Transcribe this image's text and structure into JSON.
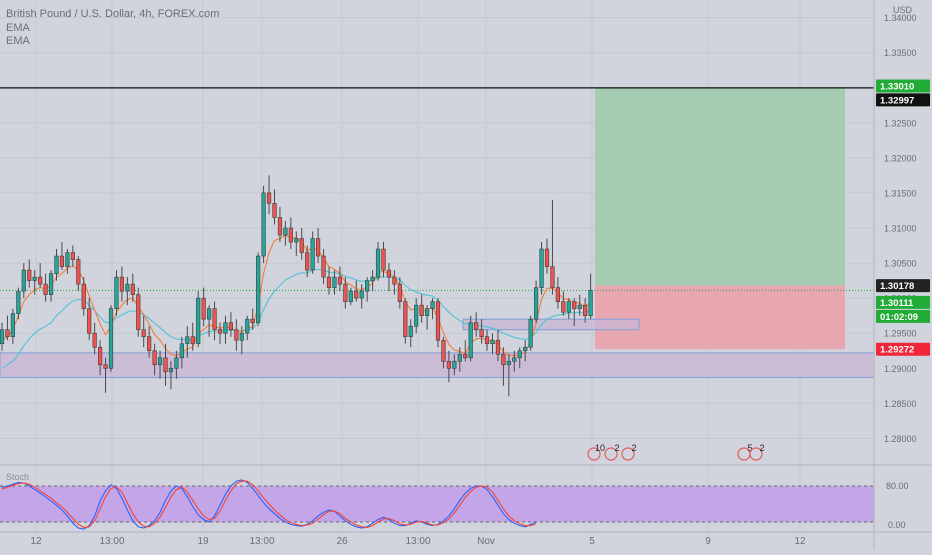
{
  "header": {
    "title": "British Pound / U.S. Dollar, 4h, FOREX.com",
    "indicators": [
      "EMA",
      "EMA"
    ]
  },
  "price_axis": {
    "currency": "USD",
    "ticks": [
      "1.34000",
      "1.33500",
      "1.33000",
      "1.32500",
      "1.32000",
      "1.31500",
      "1.31000",
      "1.30500",
      "1.30000",
      "1.29500",
      "1.29000",
      "1.28500",
      "1.28000"
    ]
  },
  "price_labels": {
    "target": "1.33010",
    "horizontal_line": "1.32997",
    "entry": "1.30178",
    "last_price": "1.30111",
    "countdown": "01:02:09",
    "stop": "1.29272"
  },
  "time_axis": {
    "labels": [
      "12",
      "13:00",
      "19",
      "13:00",
      "26",
      "13:00",
      "Nov",
      "5",
      "9",
      "12"
    ]
  },
  "stoch_panel": {
    "label": "Stoch",
    "levels": [
      "80.00",
      "0.00"
    ]
  },
  "event_markers": [
    {
      "text": "10",
      "color": "#e05a5a"
    },
    {
      "text": "2",
      "color": "#e05a5a"
    },
    {
      "text": "2",
      "color": "#e05a5a"
    },
    {
      "text": "5",
      "color": "#e05a5a"
    },
    {
      "text": "2",
      "color": "#e05a5a"
    }
  ],
  "colors": {
    "background": "#d1d4dc",
    "bull_candle": "#26a69a",
    "bear_candle": "#ef5350",
    "ema_fast": "#f57c3c",
    "ema_slow": "#4fc3d7",
    "target_zone": "#a5ccb3",
    "stop_zone": "#e8a7b0",
    "demand_zone": "#c9b6d6",
    "stoch_band": "#c3a5e8",
    "stoch_k": "#2962ff",
    "stoch_d": "#f44336",
    "entry_label": "#222222",
    "green_label": "#22ab36",
    "red_label": "#f0273a"
  },
  "chart_data": {
    "type": "candlestick",
    "symbol": "GBPUSD",
    "timeframe": "4h",
    "ylim": [
      1.2765,
      1.342
    ],
    "grid": true,
    "candles": [
      [
        1.2935,
        1.2965,
        1.2925,
        1.2955
      ],
      [
        1.2955,
        1.2975,
        1.294,
        1.2945
      ],
      [
        1.2945,
        1.2985,
        1.2935,
        1.2978
      ],
      [
        1.2978,
        1.3015,
        1.297,
        1.301
      ],
      [
        1.301,
        1.305,
        1.3,
        1.304
      ],
      [
        1.304,
        1.3055,
        1.3015,
        1.3025
      ],
      [
        1.3025,
        1.304,
        1.3005,
        1.303
      ],
      [
        1.303,
        1.305,
        1.3015,
        1.302
      ],
      [
        1.302,
        1.3035,
        1.2995,
        1.3005
      ],
      [
        1.3005,
        1.304,
        1.2995,
        1.3035
      ],
      [
        1.3035,
        1.307,
        1.3025,
        1.306
      ],
      [
        1.306,
        1.308,
        1.304,
        1.3045
      ],
      [
        1.3045,
        1.307,
        1.3035,
        1.3065
      ],
      [
        1.3065,
        1.3075,
        1.3045,
        1.3055
      ],
      [
        1.3055,
        1.306,
        1.301,
        1.302
      ],
      [
        1.302,
        1.303,
        1.2975,
        1.2985
      ],
      [
        1.2985,
        1.3,
        1.294,
        1.295
      ],
      [
        1.295,
        1.2965,
        1.292,
        1.293
      ],
      [
        1.293,
        1.294,
        1.289,
        1.2905
      ],
      [
        1.2905,
        1.2915,
        1.2865,
        1.29
      ],
      [
        1.29,
        1.299,
        1.2895,
        1.2985
      ],
      [
        1.2985,
        1.304,
        1.2975,
        1.303
      ],
      [
        1.303,
        1.3045,
        1.2995,
        1.301
      ],
      [
        1.301,
        1.303,
        1.299,
        1.302
      ],
      [
        1.302,
        1.3035,
        1.2995,
        1.3005
      ],
      [
        1.3005,
        1.3015,
        1.2945,
        1.2955
      ],
      [
        1.2955,
        1.2975,
        1.293,
        1.2945
      ],
      [
        1.2945,
        1.296,
        1.2915,
        1.2925
      ],
      [
        1.2925,
        1.2935,
        1.289,
        1.2905
      ],
      [
        1.2905,
        1.2925,
        1.2885,
        1.2915
      ],
      [
        1.2915,
        1.2935,
        1.2875,
        1.2895
      ],
      [
        1.2895,
        1.291,
        1.287,
        1.29
      ],
      [
        1.29,
        1.2925,
        1.2885,
        1.2915
      ],
      [
        1.2915,
        1.2945,
        1.29,
        1.2935
      ],
      [
        1.2935,
        1.296,
        1.2915,
        1.2945
      ],
      [
        1.2945,
        1.2965,
        1.2925,
        1.2935
      ],
      [
        1.2935,
        1.301,
        1.293,
        1.3
      ],
      [
        1.3,
        1.3015,
        1.296,
        1.297
      ],
      [
        1.297,
        1.299,
        1.2945,
        1.2985
      ],
      [
        1.2985,
        1.2995,
        1.294,
        1.2955
      ],
      [
        1.2955,
        1.2965,
        1.2935,
        1.295
      ],
      [
        1.295,
        1.2975,
        1.2935,
        1.2965
      ],
      [
        1.2965,
        1.298,
        1.2945,
        1.2955
      ],
      [
        1.2955,
        1.297,
        1.2925,
        1.294
      ],
      [
        1.294,
        1.296,
        1.292,
        1.295
      ],
      [
        1.295,
        1.2975,
        1.294,
        1.297
      ],
      [
        1.297,
        1.2985,
        1.2955,
        1.2965
      ],
      [
        1.2965,
        1.3065,
        1.296,
        1.306
      ],
      [
        1.306,
        1.316,
        1.305,
        1.315
      ],
      [
        1.315,
        1.3175,
        1.312,
        1.3135
      ],
      [
        1.3135,
        1.3155,
        1.3105,
        1.3115
      ],
      [
        1.3115,
        1.313,
        1.308,
        1.309
      ],
      [
        1.309,
        1.311,
        1.3075,
        1.31
      ],
      [
        1.31,
        1.3115,
        1.307,
        1.308
      ],
      [
        1.308,
        1.3095,
        1.306,
        1.3085
      ],
      [
        1.3085,
        1.31,
        1.3055,
        1.3065
      ],
      [
        1.3065,
        1.3075,
        1.303,
        1.304
      ],
      [
        1.304,
        1.3095,
        1.3035,
        1.3085
      ],
      [
        1.3085,
        1.31,
        1.305,
        1.306
      ],
      [
        1.306,
        1.307,
        1.302,
        1.303
      ],
      [
        1.303,
        1.3045,
        1.3005,
        1.3015
      ],
      [
        1.3015,
        1.304,
        1.3005,
        1.303
      ],
      [
        1.303,
        1.3045,
        1.301,
        1.302
      ],
      [
        1.302,
        1.303,
        1.2985,
        1.2995
      ],
      [
        1.2995,
        1.3015,
        1.299,
        1.301
      ],
      [
        1.301,
        1.3025,
        1.2995,
        1.3
      ],
      [
        1.3,
        1.302,
        1.2985,
        1.301
      ],
      [
        1.301,
        1.303,
        1.2995,
        1.3025
      ],
      [
        1.3025,
        1.304,
        1.301,
        1.303
      ],
      [
        1.303,
        1.308,
        1.3025,
        1.307
      ],
      [
        1.307,
        1.308,
        1.303,
        1.304
      ],
      [
        1.304,
        1.305,
        1.301,
        1.303
      ],
      [
        1.303,
        1.304,
        1.3005,
        1.302
      ],
      [
        1.302,
        1.303,
        1.2985,
        1.2995
      ],
      [
        1.2995,
        1.3,
        1.2935,
        1.2945
      ],
      [
        1.2945,
        1.297,
        1.293,
        1.296
      ],
      [
        1.296,
        1.3,
        1.295,
        1.299
      ],
      [
        1.299,
        1.3005,
        1.2965,
        1.2975
      ],
      [
        1.2975,
        1.299,
        1.2955,
        1.2985
      ],
      [
        1.2985,
        1.3,
        1.297,
        1.2995
      ],
      [
        1.2995,
        1.3,
        1.293,
        1.294
      ],
      [
        1.294,
        1.2945,
        1.29,
        1.291
      ],
      [
        1.291,
        1.2925,
        1.288,
        1.29
      ],
      [
        1.29,
        1.292,
        1.289,
        1.291
      ],
      [
        1.291,
        1.293,
        1.2895,
        1.292
      ],
      [
        1.292,
        1.294,
        1.291,
        1.2915
      ],
      [
        1.2915,
        1.2975,
        1.291,
        1.2965
      ],
      [
        1.2965,
        1.298,
        1.2945,
        1.2955
      ],
      [
        1.2955,
        1.297,
        1.2935,
        1.2945
      ],
      [
        1.2945,
        1.2955,
        1.2925,
        1.2935
      ],
      [
        1.2935,
        1.295,
        1.292,
        1.294
      ],
      [
        1.294,
        1.2955,
        1.291,
        1.292
      ],
      [
        1.292,
        1.293,
        1.2875,
        1.2905
      ],
      [
        1.2905,
        1.292,
        1.286,
        1.291
      ],
      [
        1.291,
        1.2925,
        1.2895,
        1.2915
      ],
      [
        1.2915,
        1.293,
        1.29,
        1.2925
      ],
      [
        1.2925,
        1.294,
        1.291,
        1.293
      ],
      [
        1.293,
        1.2975,
        1.2925,
        1.297
      ],
      [
        1.297,
        1.3025,
        1.2965,
        1.3015
      ],
      [
        1.3015,
        1.308,
        1.3005,
        1.307
      ],
      [
        1.307,
        1.3085,
        1.3035,
        1.3045
      ],
      [
        1.3045,
        1.314,
        1.3005,
        1.3015
      ],
      [
        1.3015,
        1.303,
        1.2985,
        1.2995
      ],
      [
        1.2995,
        1.301,
        1.2975,
        1.298
      ],
      [
        1.298,
        1.3,
        1.297,
        1.2995
      ],
      [
        1.2995,
        1.3,
        1.296,
        1.2985
      ],
      [
        1.2985,
        1.3005,
        1.2975,
        1.299
      ],
      [
        1.299,
        1.3,
        1.2965,
        1.2975
      ],
      [
        1.2975,
        1.3035,
        1.297,
        1.3011
      ]
    ],
    "ema_fast": [
      1.294,
      1.2945,
      1.2955,
      1.2975,
      1.2995,
      1.3005,
      1.3012,
      1.3015,
      1.3013,
      1.3018,
      1.303,
      1.3035,
      1.3043,
      1.3046,
      1.304,
      1.3025,
      1.3003,
      1.2983,
      1.2963,
      1.2948,
      1.296,
      1.298,
      1.299,
      1.2998,
      1.3,
      1.2988,
      1.2977,
      1.2963,
      1.2948,
      1.294,
      1.2928,
      1.292,
      1.2918,
      1.2922,
      1.2928,
      1.293,
      1.295,
      1.2955,
      1.2962,
      1.296,
      1.2957,
      1.2959,
      1.2958,
      1.2953,
      1.2952,
      1.2957,
      1.2959,
      1.299,
      1.3035,
      1.3065,
      1.3082,
      1.3085,
      1.309,
      1.3086,
      1.3086,
      1.308,
      1.3067,
      1.3072,
      1.3068,
      1.3057,
      1.3045,
      1.3041,
      1.3035,
      1.3023,
      1.3019,
      1.3013,
      1.3012,
      1.3016,
      1.3021,
      1.3037,
      1.3038,
      1.3035,
      1.303,
      1.3018,
      1.2995,
      1.2983,
      1.2985,
      1.2982,
      1.2983,
      1.2987,
      1.2971,
      1.2951,
      1.2934,
      1.2926,
      1.2924,
      1.2921,
      1.2936,
      1.2942,
      1.2943,
      1.294,
      1.294,
      1.2933,
      1.2924,
      1.2919,
      1.2918,
      1.292,
      1.2923,
      1.2938,
      1.2964,
      1.2999,
      1.3014,
      1.3014,
      1.3008,
      1.2999,
      1.2998,
      1.2994,
      1.2993,
      1.2987,
      1.2995
    ],
    "ema_slow": [
      1.29,
      1.2905,
      1.291,
      1.292,
      1.2932,
      1.2942,
      1.295,
      1.2956,
      1.296,
      1.2965,
      1.2975,
      1.2982,
      1.299,
      1.2996,
      1.2998,
      1.2997,
      1.299,
      1.2982,
      1.2973,
      1.2965,
      1.2966,
      1.2972,
      1.2976,
      1.298,
      1.2982,
      1.298,
      1.2976,
      1.2971,
      1.2964,
      1.2958,
      1.2951,
      1.2945,
      1.2942,
      1.2941,
      1.2941,
      1.2941,
      1.2947,
      1.2949,
      1.2953,
      1.2953,
      1.2953,
      1.2954,
      1.2954,
      1.2953,
      1.2953,
      1.2955,
      1.2956,
      1.2966,
      1.2984,
      1.2999,
      1.301,
      1.3018,
      1.3026,
      1.303,
      1.3034,
      1.3036,
      1.3036,
      1.304,
      1.3041,
      1.304,
      1.3037,
      1.3036,
      1.3035,
      1.3031,
      1.3029,
      1.3026,
      1.3024,
      1.3024,
      1.3025,
      1.3029,
      1.303,
      1.303,
      1.3029,
      1.3026,
      1.3018,
      1.3012,
      1.3009,
      1.3006,
      1.3004,
      1.3003,
      1.2997,
      1.2988,
      1.298,
      1.2973,
      1.2968,
      1.2963,
      1.2963,
      1.2962,
      1.2961,
      1.2959,
      1.2957,
      1.2954,
      1.295,
      1.2947,
      1.2944,
      1.2942,
      1.2941,
      1.2944,
      1.2951,
      1.2962,
      1.297,
      1.2974,
      1.2976,
      1.2977,
      1.2979,
      1.2979,
      1.298,
      1.2979,
      1.2982
    ],
    "stoch_k": [
      78,
      80,
      83,
      86,
      85,
      80,
      74,
      68,
      62,
      55,
      48,
      40,
      30,
      18,
      10,
      8,
      14,
      30,
      55,
      72,
      82,
      76,
      60,
      40,
      22,
      12,
      10,
      14,
      22,
      36,
      56,
      72,
      80,
      76,
      62,
      46,
      32,
      24,
      20,
      30,
      48,
      66,
      80,
      88,
      90,
      86,
      76,
      64,
      52,
      42,
      34,
      26,
      20,
      16,
      14,
      13,
      16,
      22,
      30,
      36,
      40,
      38,
      30,
      22,
      16,
      12,
      10,
      12,
      18,
      24,
      28,
      24,
      18,
      14,
      14,
      18,
      22,
      20,
      16,
      14,
      16,
      22,
      30,
      42,
      56,
      68,
      76,
      80,
      80,
      74,
      62,
      48,
      34,
      24,
      18,
      14,
      12,
      16,
      20
    ],
    "stoch_d": [
      75,
      78,
      81,
      84,
      85,
      83,
      78,
      72,
      66,
      60,
      52,
      45,
      36,
      26,
      16,
      11,
      12,
      22,
      42,
      62,
      76,
      78,
      70,
      52,
      34,
      20,
      13,
      12,
      18,
      28,
      44,
      62,
      74,
      78,
      70,
      56,
      42,
      30,
      24,
      26,
      38,
      56,
      72,
      84,
      88,
      88,
      82,
      72,
      60,
      50,
      40,
      32,
      24,
      19,
      16,
      14,
      15,
      18,
      25,
      32,
      38,
      38,
      34,
      26,
      20,
      15,
      12,
      11,
      14,
      20,
      25,
      26,
      22,
      17,
      15,
      16,
      20,
      21,
      18,
      15,
      15,
      19,
      25,
      35,
      48,
      61,
      71,
      78,
      80,
      78,
      70,
      56,
      42,
      30,
      22,
      17,
      14,
      14,
      17
    ]
  },
  "drawings": {
    "target_price": 1.3301,
    "entry_price": 1.30178,
    "stop_price": 1.29272,
    "horizontal_line_price": 1.32997,
    "demand_zone": [
      1.2887,
      1.2922
    ],
    "small_zone": [
      1.2955,
      1.297
    ],
    "stoch_band": [
      80,
      20
    ]
  }
}
